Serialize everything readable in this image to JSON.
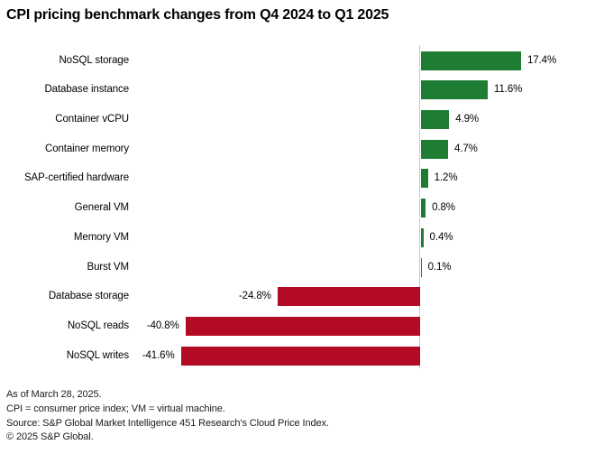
{
  "title": "CPI pricing benchmark changes from Q4 2024 to Q1 2025",
  "chart_data": {
    "type": "bar",
    "orientation": "horizontal",
    "unit": "%",
    "categories": [
      "NoSQL storage",
      "Database instance",
      "Container vCPU",
      "Container memory",
      "SAP-certified hardware",
      "General VM",
      "Memory VM",
      "Burst VM",
      "Database storage",
      "NoSQL reads",
      "NoSQL writes"
    ],
    "values": [
      17.4,
      11.6,
      4.9,
      4.7,
      1.2,
      0.8,
      0.4,
      0.1,
      -24.8,
      -40.8,
      -41.6
    ],
    "value_labels": [
      "17.4%",
      "11.6%",
      "4.9%",
      "4.7%",
      "1.2%",
      "0.8%",
      "0.4%",
      "0.1%",
      "-24.8%",
      "-40.8%",
      "-41.6%"
    ],
    "xlim": [
      -45,
      30
    ],
    "grid": "off",
    "legend": "none",
    "positive_color": "#1e7d33",
    "negative_color": "#b30b26",
    "axis_color": "#c9c9c9",
    "data_labels": "outside-end"
  },
  "footer": {
    "lines": [
      "As of March 28, 2025.",
      "CPI = consumer price index; VM = virtual machine.",
      "Source: S&P Global Market Intelligence 451 Research's Cloud Price Index.",
      "© 2025 S&P Global."
    ]
  }
}
